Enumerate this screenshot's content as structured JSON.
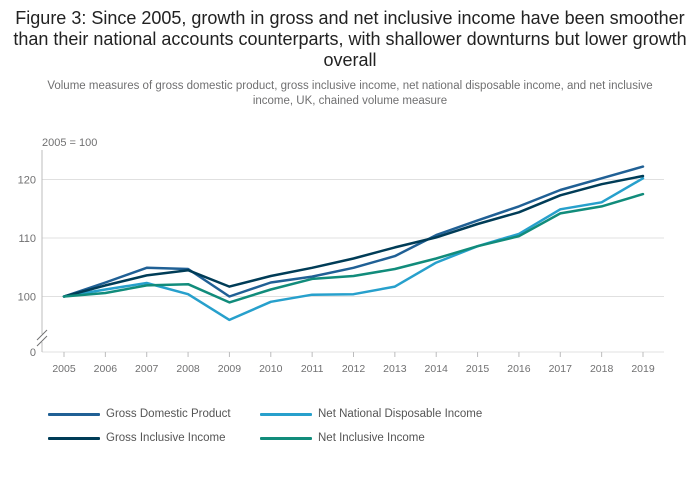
{
  "title": "Figure 3: Since 2005, growth in gross and net inclusive income have been smoother than their national accounts counterparts, with shallower downturns but lower growth overall",
  "subtitle": "Volume measures of gross domestic product, gross inclusive income, net national disposable income, and net inclusive income, UK, chained volume measure",
  "chart_data": {
    "type": "line",
    "x": [
      "2005",
      "2006",
      "2007",
      "2008",
      "2009",
      "2010",
      "2011",
      "2012",
      "2013",
      "2014",
      "2015",
      "2016",
      "2017",
      "2018",
      "2019"
    ],
    "ylabel": "2005 = 100",
    "yticks": [
      0,
      100,
      110,
      120
    ],
    "ylim": [
      0,
      124
    ],
    "axis_break": true,
    "legend_position": "bottom",
    "series": [
      {
        "name": "Gross Domestic Product",
        "color": "#206095",
        "values": [
          100.0,
          102.4,
          104.9,
          104.7,
          100.0,
          102.4,
          103.4,
          104.9,
          106.9,
          110.5,
          113.0,
          115.4,
          118.2,
          120.2,
          122.2
        ]
      },
      {
        "name": "Net National Disposable Income",
        "color": "#27a0cc",
        "values": [
          100.0,
          101.2,
          102.3,
          100.4,
          96.0,
          99.1,
          100.3,
          100.4,
          101.7,
          105.8,
          108.6,
          110.7,
          114.9,
          116.1,
          120.2
        ]
      },
      {
        "name": "Gross Inclusive Income",
        "color": "#003c57",
        "values": [
          100.0,
          101.9,
          103.6,
          104.5,
          101.7,
          103.5,
          104.9,
          106.5,
          108.4,
          110.1,
          112.4,
          114.4,
          117.3,
          119.2,
          120.6
        ]
      },
      {
        "name": "Net Inclusive Income",
        "color": "#118c7b",
        "values": [
          100.0,
          100.6,
          101.9,
          102.1,
          99.0,
          101.2,
          103.0,
          103.5,
          104.7,
          106.5,
          108.6,
          110.3,
          114.2,
          115.4,
          117.5
        ]
      }
    ]
  }
}
